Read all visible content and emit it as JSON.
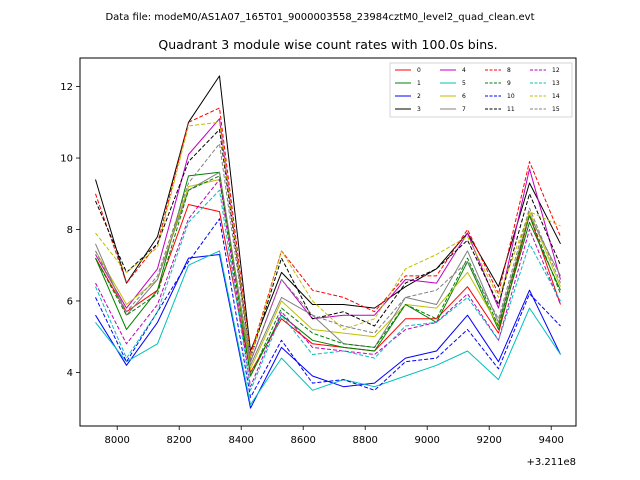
{
  "suptitle": "Data file: modeM0/AS1A07_165T01_9000003558_23984cztM0_level2_quad_clean.evt",
  "chart_data": {
    "type": "line",
    "title": "Quadrant 3 module wise count rates with 100.0s bins.",
    "xlabel": "",
    "ylabel": "",
    "x_offset_label": "+3.211e8",
    "xlim": [
      7880,
      9480
    ],
    "ylim": [
      2.5,
      12.8
    ],
    "xticks": [
      8000,
      8200,
      8400,
      8600,
      8800,
      9000,
      9200,
      9400
    ],
    "yticks": [
      4,
      6,
      8,
      10,
      12
    ],
    "grid": false,
    "legend_position": "top-right",
    "x": [
      7930,
      8030,
      8130,
      8230,
      8330,
      8430,
      8530,
      8630,
      8730,
      8830,
      8930,
      9030,
      9130,
      9230,
      9330,
      9430
    ],
    "series": [
      {
        "name": "0",
        "color": "#ff0000",
        "dash": "solid",
        "values": [
          7.2,
          5.7,
          6.3,
          8.7,
          8.5,
          4.0,
          5.5,
          4.8,
          4.7,
          4.6,
          5.5,
          5.5,
          6.4,
          5.1,
          8.4,
          5.9
        ]
      },
      {
        "name": "1",
        "color": "#008000",
        "dash": "solid",
        "values": [
          7.2,
          5.2,
          6.3,
          9.5,
          9.6,
          3.9,
          5.6,
          4.9,
          4.7,
          4.6,
          5.9,
          5.4,
          7.1,
          5.2,
          8.2,
          6.3
        ]
      },
      {
        "name": "2",
        "color": "#0000ff",
        "dash": "solid",
        "values": [
          5.6,
          4.2,
          5.4,
          7.2,
          7.3,
          3.0,
          4.7,
          3.9,
          3.6,
          3.7,
          4.4,
          4.6,
          5.6,
          4.3,
          6.3,
          4.5
        ]
      },
      {
        "name": "3",
        "color": "#000000",
        "dash": "solid",
        "values": [
          9.4,
          6.5,
          7.8,
          11.0,
          12.3,
          4.6,
          6.8,
          5.9,
          5.9,
          5.8,
          6.4,
          6.9,
          7.9,
          6.4,
          9.3,
          7.6
        ]
      },
      {
        "name": "4",
        "color": "#bf00bf",
        "dash": "solid",
        "values": [
          7.3,
          5.8,
          6.9,
          10.1,
          11.1,
          4.3,
          6.6,
          5.5,
          5.6,
          5.6,
          6.6,
          6.5,
          7.9,
          5.8,
          9.7,
          6.6
        ]
      },
      {
        "name": "5",
        "color": "#00bfbf",
        "dash": "solid",
        "values": [
          5.4,
          4.3,
          4.8,
          7.0,
          7.4,
          3.1,
          4.4,
          3.5,
          3.8,
          3.6,
          3.9,
          4.2,
          4.6,
          3.8,
          5.8,
          4.5
        ]
      },
      {
        "name": "6",
        "color": "#bfbf00",
        "dash": "solid",
        "values": [
          7.4,
          5.9,
          6.6,
          9.2,
          9.4,
          4.1,
          6.0,
          5.2,
          5.1,
          5.0,
          5.9,
          5.8,
          6.8,
          5.3,
          8.5,
          6.4
        ]
      },
      {
        "name": "7",
        "color": "#808080",
        "dash": "solid",
        "values": [
          7.6,
          5.6,
          6.6,
          9.1,
          9.6,
          4.2,
          6.1,
          5.6,
          4.8,
          4.7,
          6.1,
          5.9,
          7.4,
          5.4,
          8.4,
          6.7
        ]
      },
      {
        "name": "8",
        "color": "#ff0000",
        "dash": "dashed",
        "values": [
          9.0,
          6.5,
          7.6,
          11.0,
          11.4,
          4.5,
          7.4,
          6.3,
          6.1,
          5.7,
          6.7,
          6.7,
          8.0,
          6.2,
          9.9,
          7.8
        ]
      },
      {
        "name": "9",
        "color": "#008000",
        "dash": "dashed",
        "values": [
          7.2,
          5.6,
          6.2,
          9.1,
          9.5,
          3.9,
          5.8,
          5.1,
          4.8,
          4.7,
          5.9,
          5.5,
          7.2,
          5.3,
          8.4,
          6.2
        ]
      },
      {
        "name": "10",
        "color": "#0000ff",
        "dash": "dashed",
        "values": [
          6.1,
          4.3,
          5.7,
          7.1,
          8.3,
          3.3,
          4.9,
          3.7,
          3.8,
          3.5,
          4.3,
          4.4,
          5.2,
          4.1,
          6.2,
          5.3
        ]
      },
      {
        "name": "11",
        "color": "#000000",
        "dash": "dashed",
        "values": [
          8.8,
          6.8,
          7.6,
          9.9,
          10.8,
          4.4,
          7.2,
          5.5,
          5.7,
          5.3,
          6.5,
          6.9,
          7.7,
          5.9,
          9.0,
          7.0
        ]
      },
      {
        "name": "12",
        "color": "#bf00bf",
        "dash": "dashed",
        "values": [
          6.5,
          4.8,
          5.9,
          8.3,
          9.4,
          3.6,
          5.7,
          4.7,
          4.6,
          4.5,
          5.2,
          5.4,
          6.2,
          4.9,
          8.0,
          5.9
        ]
      },
      {
        "name": "13",
        "color": "#00bfbf",
        "dash": "dashed",
        "values": [
          6.4,
          4.4,
          5.7,
          8.2,
          9.1,
          3.5,
          5.6,
          4.5,
          4.6,
          4.4,
          5.3,
          5.4,
          6.1,
          4.9,
          7.6,
          6.0
        ]
      },
      {
        "name": "14",
        "color": "#bfbf00",
        "dash": "dashed",
        "values": [
          7.9,
          6.8,
          7.5,
          10.9,
          11.0,
          4.4,
          7.4,
          6.0,
          5.2,
          5.5,
          6.9,
          7.3,
          7.8,
          6.1,
          8.5,
          8.1
        ]
      },
      {
        "name": "15",
        "color": "#808080",
        "dash": "dashed",
        "values": [
          7.4,
          5.7,
          6.7,
          9.3,
          10.4,
          4.3,
          6.6,
          5.6,
          5.3,
          5.1,
          6.1,
          6.3,
          7.1,
          5.5,
          8.6,
          6.5
        ]
      }
    ]
  }
}
